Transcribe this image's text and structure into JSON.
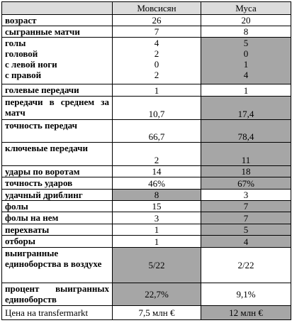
{
  "table": {
    "header": [
      "Мовсисян",
      "Муса"
    ],
    "rows": [
      {
        "label": "возраст",
        "values": [
          26,
          20
        ]
      },
      {
        "label": "сыгранные матчи",
        "values": [
          7,
          8
        ]
      },
      {
        "labels": [
          "голы",
          "головой",
          "с левой ноги",
          "с правой"
        ],
        "values": [
          [
            4,
            2,
            0,
            2
          ],
          [
            5,
            0,
            1,
            4
          ]
        ]
      },
      {
        "label": "голевые передачи",
        "values": [
          1,
          1
        ]
      },
      {
        "label": "передачи в среднем за матч",
        "values": [
          "10,7",
          "17,4"
        ]
      },
      {
        "label": "точность передач",
        "values": [
          "66,7",
          "78,4"
        ]
      },
      {
        "label": "ключевые передачи",
        "values": [
          2,
          11
        ]
      },
      {
        "label": "удары по воротам",
        "values": [
          14,
          18
        ]
      },
      {
        "label": "точность ударов",
        "values": [
          "46%",
          "67%"
        ]
      },
      {
        "label": "удачный дриблинг",
        "values": [
          8,
          3
        ]
      },
      {
        "label": "фолы",
        "values": [
          15,
          7
        ]
      },
      {
        "label": "фолы на нем",
        "values": [
          3,
          7
        ]
      },
      {
        "label": "перехваты",
        "values": [
          1,
          5
        ]
      },
      {
        "label": "отборы",
        "values": [
          1,
          4
        ]
      },
      {
        "label": "выигранные единоборства в воздухе",
        "values": [
          "5/22",
          "2/22"
        ]
      },
      {
        "label": "процент выигранных единоборств",
        "values": [
          "22,7%",
          "9,1%"
        ]
      },
      {
        "label": "Цена на transfermarkt",
        "values": [
          "7,5 млн €",
          "12 млн €"
        ]
      }
    ]
  }
}
